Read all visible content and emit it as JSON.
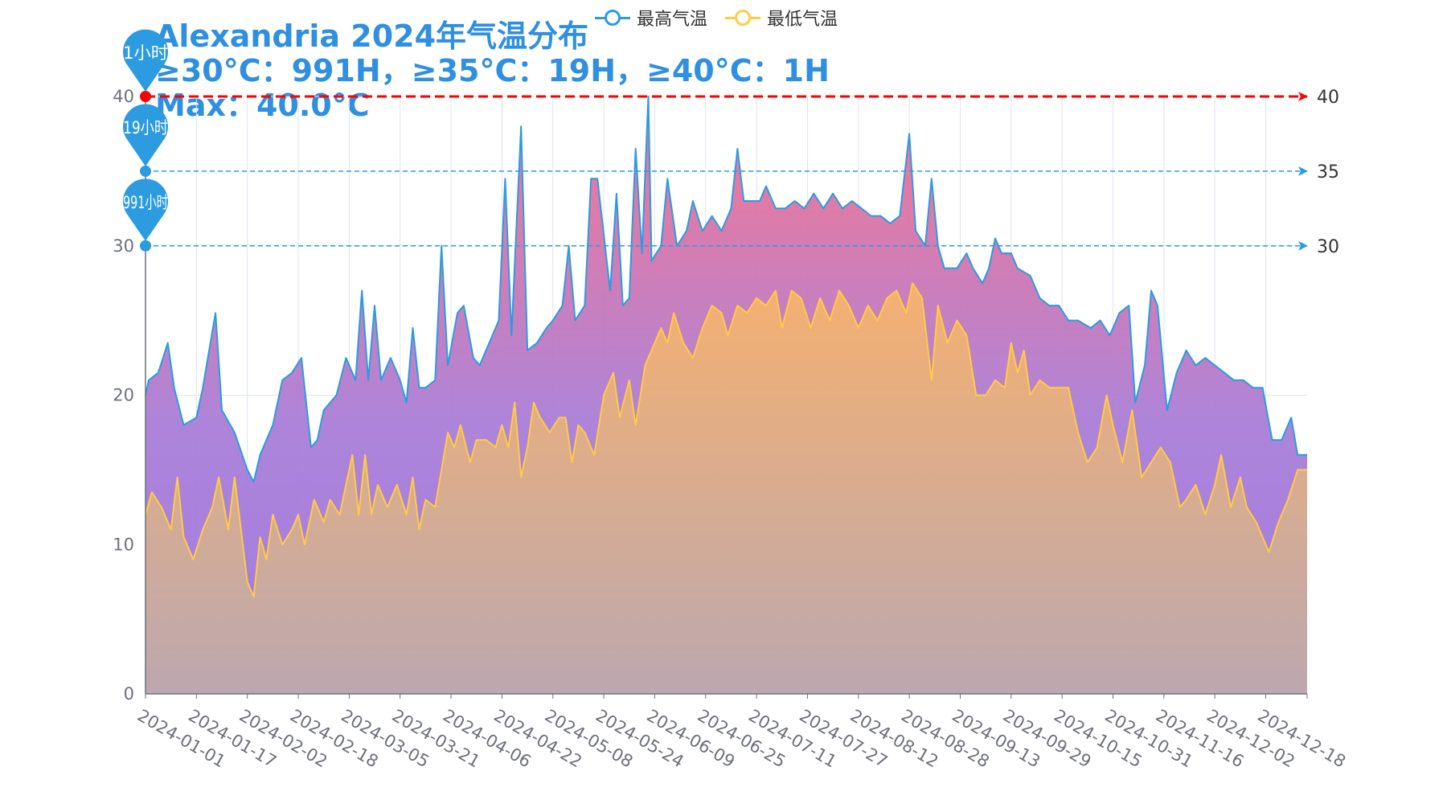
{
  "chart_data": {
    "type": "area",
    "title": "Alexandria 2024年气温分布",
    "subtitle_lines": [
      "≥30°C：991H，≥35°C：19H，≥40°C：1H",
      "Max：40.0°C"
    ],
    "x_tick_labels": [
      "2024-01-01",
      "2024-01-17",
      "2024-02-02",
      "2024-02-18",
      "2024-03-05",
      "2024-03-21",
      "2024-04-06",
      "2024-04-22",
      "2024-05-08",
      "2024-05-24",
      "2024-06-09",
      "2024-06-25",
      "2024-07-11",
      "2024-07-27",
      "2024-08-12",
      "2024-08-28",
      "2024-09-13",
      "2024-09-29",
      "2024-10-15",
      "2024-10-31",
      "2024-11-16",
      "2024-12-02",
      "2024-12-18"
    ],
    "ylim": [
      0,
      40
    ],
    "y_ticks": [
      0,
      10,
      20,
      30,
      40
    ],
    "grid": true,
    "legend_position": "top-center",
    "thresholds": [
      {
        "value": 40,
        "label": "40",
        "color": "#ff0000"
      },
      {
        "value": 35,
        "label": "35",
        "color": "#2c9be0"
      },
      {
        "value": 30,
        "label": "30",
        "color": "#2c9be0"
      }
    ],
    "threshold_pins": [
      {
        "value": 40,
        "label": "1小时"
      },
      {
        "value": 35,
        "label": "19小时"
      },
      {
        "value": 30,
        "label": "991小时"
      }
    ],
    "series": [
      {
        "name": "最高气温",
        "color": "#2c9be0",
        "keyframes": [
          [
            1,
            20
          ],
          [
            2,
            21
          ],
          [
            5,
            21.5
          ],
          [
            8,
            23.5
          ],
          [
            10,
            20.5
          ],
          [
            13,
            18
          ],
          [
            17,
            18.5
          ],
          [
            19,
            20.5
          ],
          [
            23,
            25.5
          ],
          [
            25,
            19
          ],
          [
            29,
            17.5
          ],
          [
            33,
            15
          ],
          [
            35,
            14.2
          ],
          [
            37,
            16
          ],
          [
            41,
            18
          ],
          [
            44,
            21
          ],
          [
            47,
            21.5
          ],
          [
            50,
            22.5
          ],
          [
            53,
            16.5
          ],
          [
            55,
            17
          ],
          [
            57,
            19
          ],
          [
            61,
            20
          ],
          [
            64,
            22.5
          ],
          [
            67,
            21
          ],
          [
            69,
            27
          ],
          [
            71,
            21
          ],
          [
            73,
            26
          ],
          [
            75,
            21
          ],
          [
            78,
            22.5
          ],
          [
            81,
            21
          ],
          [
            83,
            19.5
          ],
          [
            85,
            24.5
          ],
          [
            87,
            20.5
          ],
          [
            89,
            20.5
          ],
          [
            92,
            21
          ],
          [
            94,
            30
          ],
          [
            96,
            22
          ],
          [
            99,
            25.5
          ],
          [
            101,
            26
          ],
          [
            104,
            22.5
          ],
          [
            106,
            22
          ],
          [
            109,
            23.5
          ],
          [
            112,
            25
          ],
          [
            114,
            34.5
          ],
          [
            116,
            24
          ],
          [
            119,
            38
          ],
          [
            121,
            23
          ],
          [
            124,
            23.5
          ],
          [
            127,
            24.5
          ],
          [
            129,
            25
          ],
          [
            132,
            26
          ],
          [
            134,
            30
          ],
          [
            136,
            25
          ],
          [
            139,
            26
          ],
          [
            141,
            34.5
          ],
          [
            143,
            34.5
          ],
          [
            147,
            27
          ],
          [
            149,
            33.5
          ],
          [
            151,
            26
          ],
          [
            153,
            26.5
          ],
          [
            155,
            36.5
          ],
          [
            157,
            29.5
          ],
          [
            159,
            40
          ],
          [
            160,
            29
          ],
          [
            163,
            30
          ],
          [
            165,
            34.5
          ],
          [
            168,
            30
          ],
          [
            171,
            31
          ],
          [
            173,
            33
          ],
          [
            176,
            31
          ],
          [
            179,
            32
          ],
          [
            182,
            31
          ],
          [
            185,
            32.5
          ],
          [
            187,
            36.5
          ],
          [
            189,
            33
          ],
          [
            191,
            33
          ],
          [
            194,
            33
          ],
          [
            196,
            34
          ],
          [
            199,
            32.5
          ],
          [
            202,
            32.5
          ],
          [
            205,
            33
          ],
          [
            208,
            32.5
          ],
          [
            211,
            33.5
          ],
          [
            214,
            32.5
          ],
          [
            217,
            33.5
          ],
          [
            220,
            32.5
          ],
          [
            223,
            33
          ],
          [
            226,
            32.5
          ],
          [
            229,
            32
          ],
          [
            232,
            32
          ],
          [
            235,
            31.5
          ],
          [
            238,
            32
          ],
          [
            241,
            37.5
          ],
          [
            243,
            31
          ],
          [
            246,
            30
          ],
          [
            248,
            34.5
          ],
          [
            250,
            30
          ],
          [
            252,
            28.5
          ],
          [
            256,
            28.5
          ],
          [
            259,
            29.5
          ],
          [
            261,
            28.5
          ],
          [
            264,
            27.5
          ],
          [
            266,
            28.5
          ],
          [
            268,
            30.5
          ],
          [
            270,
            29.5
          ],
          [
            273,
            29.5
          ],
          [
            275,
            28.5
          ],
          [
            279,
            28
          ],
          [
            282,
            26.5
          ],
          [
            285,
            26
          ],
          [
            288,
            26
          ],
          [
            291,
            25
          ],
          [
            294,
            25
          ],
          [
            298,
            24.5
          ],
          [
            301,
            25
          ],
          [
            304,
            24
          ],
          [
            307,
            25.5
          ],
          [
            310,
            26
          ],
          [
            312,
            19.5
          ],
          [
            315,
            22
          ],
          [
            317,
            27
          ],
          [
            319,
            26
          ],
          [
            322,
            19
          ],
          [
            325,
            21.5
          ],
          [
            328,
            23
          ],
          [
            331,
            22
          ],
          [
            334,
            22.5
          ],
          [
            337,
            22
          ],
          [
            340,
            21.5
          ],
          [
            343,
            21
          ],
          [
            346,
            21
          ],
          [
            349,
            20.5
          ],
          [
            352,
            20.5
          ],
          [
            355,
            17
          ],
          [
            358,
            17
          ],
          [
            361,
            18.5
          ],
          [
            363,
            16
          ]
        ]
      },
      {
        "name": "最低气温",
        "color": "#ffcc44",
        "keyframes": [
          [
            1,
            12
          ],
          [
            3,
            13.5
          ],
          [
            6,
            12.5
          ],
          [
            9,
            11
          ],
          [
            11,
            14.5
          ],
          [
            13,
            10.5
          ],
          [
            16,
            9
          ],
          [
            19,
            11
          ],
          [
            22,
            12.5
          ],
          [
            24,
            14.5
          ],
          [
            27,
            11
          ],
          [
            29,
            14.5
          ],
          [
            31,
            11
          ],
          [
            33,
            7.5
          ],
          [
            35,
            6.5
          ],
          [
            37,
            10.5
          ],
          [
            39,
            9
          ],
          [
            41,
            12
          ],
          [
            44,
            10
          ],
          [
            47,
            11
          ],
          [
            49,
            12
          ],
          [
            51,
            10
          ],
          [
            54,
            13
          ],
          [
            57,
            11.5
          ],
          [
            59,
            13
          ],
          [
            62,
            12
          ],
          [
            64,
            14
          ],
          [
            66,
            16
          ],
          [
            68,
            12
          ],
          [
            70,
            16
          ],
          [
            72,
            12
          ],
          [
            74,
            14
          ],
          [
            77,
            12.5
          ],
          [
            80,
            14
          ],
          [
            83,
            12
          ],
          [
            85,
            14.5
          ],
          [
            87,
            11
          ],
          [
            89,
            13
          ],
          [
            92,
            12.5
          ],
          [
            94,
            15
          ],
          [
            96,
            17.5
          ],
          [
            98,
            16.5
          ],
          [
            100,
            18
          ],
          [
            103,
            15.5
          ],
          [
            105,
            17
          ],
          [
            108,
            17
          ],
          [
            111,
            16.5
          ],
          [
            113,
            18
          ],
          [
            115,
            16.5
          ],
          [
            117,
            19.5
          ],
          [
            119,
            14.5
          ],
          [
            121,
            16.5
          ],
          [
            123,
            19.5
          ],
          [
            125,
            18.5
          ],
          [
            128,
            17.5
          ],
          [
            131,
            18.5
          ],
          [
            133,
            18.5
          ],
          [
            135,
            15.5
          ],
          [
            137,
            18
          ],
          [
            139,
            17.5
          ],
          [
            142,
            16
          ],
          [
            145,
            20
          ],
          [
            148,
            21.5
          ],
          [
            150,
            18.5
          ],
          [
            153,
            21
          ],
          [
            155,
            18
          ],
          [
            158,
            22
          ],
          [
            160,
            23
          ],
          [
            163,
            24.5
          ],
          [
            165,
            23.5
          ],
          [
            167,
            25.5
          ],
          [
            170,
            23.5
          ],
          [
            173,
            22.5
          ],
          [
            176,
            24.5
          ],
          [
            179,
            26
          ],
          [
            182,
            25.5
          ],
          [
            184,
            24
          ],
          [
            187,
            26
          ],
          [
            190,
            25.5
          ],
          [
            193,
            26.5
          ],
          [
            196,
            26
          ],
          [
            199,
            27
          ],
          [
            201,
            24.5
          ],
          [
            204,
            27
          ],
          [
            207,
            26.5
          ],
          [
            210,
            24.5
          ],
          [
            213,
            26.5
          ],
          [
            216,
            25
          ],
          [
            219,
            27
          ],
          [
            222,
            26
          ],
          [
            225,
            24.5
          ],
          [
            228,
            26
          ],
          [
            231,
            25
          ],
          [
            234,
            26.5
          ],
          [
            237,
            27
          ],
          [
            240,
            25.5
          ],
          [
            242,
            27.5
          ],
          [
            245,
            26.5
          ],
          [
            248,
            21
          ],
          [
            250,
            26
          ],
          [
            253,
            23.5
          ],
          [
            256,
            25
          ],
          [
            259,
            24
          ],
          [
            262,
            20
          ],
          [
            265,
            20
          ],
          [
            268,
            21
          ],
          [
            271,
            20.5
          ],
          [
            273,
            23.5
          ],
          [
            275,
            21.5
          ],
          [
            277,
            23
          ],
          [
            279,
            20
          ],
          [
            282,
            21
          ],
          [
            285,
            20.5
          ],
          [
            288,
            20.5
          ],
          [
            291,
            20.5
          ],
          [
            294,
            17.5
          ],
          [
            297,
            15.5
          ],
          [
            300,
            16.5
          ],
          [
            303,
            20
          ],
          [
            305,
            18
          ],
          [
            308,
            15.5
          ],
          [
            311,
            19
          ],
          [
            314,
            14.5
          ],
          [
            317,
            15.5
          ],
          [
            320,
            16.5
          ],
          [
            323,
            15.5
          ],
          [
            326,
            12.5
          ],
          [
            328,
            13
          ],
          [
            331,
            14
          ],
          [
            334,
            12
          ],
          [
            337,
            14
          ],
          [
            339,
            16
          ],
          [
            342,
            12.5
          ],
          [
            345,
            14.5
          ],
          [
            347,
            12.5
          ],
          [
            350,
            11.5
          ],
          [
            352,
            10.5
          ],
          [
            354,
            9.5
          ],
          [
            357,
            11.5
          ],
          [
            360,
            13
          ],
          [
            363,
            15
          ]
        ]
      }
    ]
  },
  "legend": {
    "items": [
      {
        "label": "最高气温",
        "color": "#2c9be0"
      },
      {
        "label": "最低气温",
        "color": "#ffcc44"
      }
    ]
  }
}
